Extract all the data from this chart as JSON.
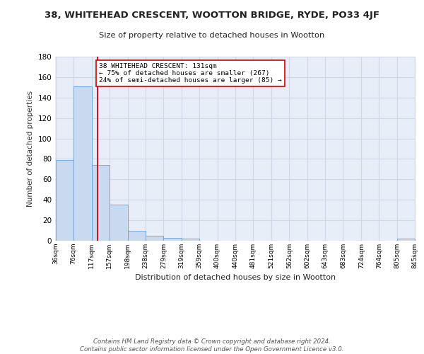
{
  "title": "38, WHITEHEAD CRESCENT, WOOTTON BRIDGE, RYDE, PO33 4JF",
  "subtitle": "Size of property relative to detached houses in Wootton",
  "xlabel": "Distribution of detached houses by size in Wootton",
  "ylabel": "Number of detached properties",
  "bar_edges": [
    36,
    76,
    117,
    157,
    198,
    238,
    279,
    319,
    359,
    400,
    440,
    481,
    521,
    562,
    602,
    643,
    683,
    724,
    764,
    805,
    845
  ],
  "bar_heights": [
    79,
    151,
    74,
    35,
    10,
    5,
    3,
    2,
    0,
    0,
    0,
    0,
    0,
    0,
    0,
    0,
    0,
    0,
    0,
    2
  ],
  "bar_color": "#c9d9f0",
  "bar_edge_color": "#6a9fd8",
  "grid_color": "#d0d8e8",
  "background_color": "#e8eef8",
  "property_line_x": 131,
  "property_line_color": "#cc0000",
  "annotation_text": "38 WHITEHEAD CRESCENT: 131sqm\n← 75% of detached houses are smaller (267)\n24% of semi-detached houses are larger (85) →",
  "annotation_box_color": "#ffffff",
  "annotation_box_edge": "#cc0000",
  "ylim": [
    0,
    180
  ],
  "yticks": [
    0,
    20,
    40,
    60,
    80,
    100,
    120,
    140,
    160,
    180
  ],
  "footer_text": "Contains HM Land Registry data © Crown copyright and database right 2024.\nContains public sector information licensed under the Open Government Licence v3.0.",
  "tick_labels": [
    "36sqm",
    "76sqm",
    "117sqm",
    "157sqm",
    "198sqm",
    "238sqm",
    "279sqm",
    "319sqm",
    "359sqm",
    "400sqm",
    "440sqm",
    "481sqm",
    "521sqm",
    "562sqm",
    "602sqm",
    "643sqm",
    "683sqm",
    "724sqm",
    "764sqm",
    "805sqm",
    "845sqm"
  ]
}
